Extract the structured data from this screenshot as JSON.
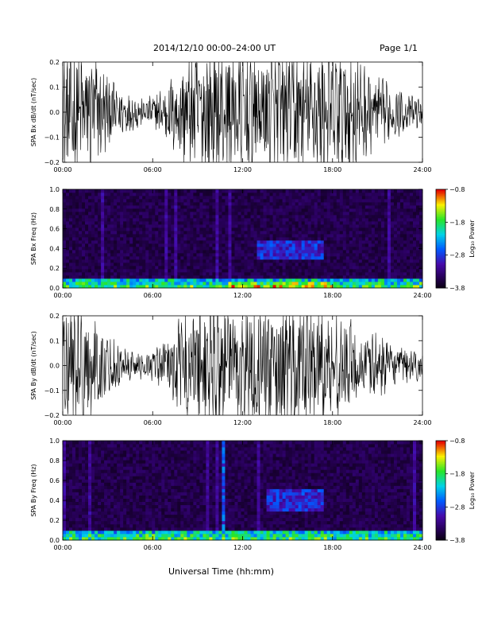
{
  "header": {
    "title": "2014/12/10   00:00–24:00 UT",
    "page": "Page 1/1"
  },
  "x_axis_label": "Universal Time (hh:mm)",
  "chart_data": [
    {
      "type": "line",
      "ylabel": "SPA Bx dB/dt (nT/sec)",
      "x_ticks": [
        "00:00",
        "06:00",
        "12:00",
        "18:00",
        "24:00"
      ],
      "y_ticks": [
        "0.2",
        "0.1",
        "0.0",
        "−0.1",
        "−0.2"
      ],
      "xlim": [
        0,
        24
      ],
      "ylim": [
        -0.2,
        0.2
      ],
      "x_unit": "hours UT",
      "series": [
        {
          "color": "#000000",
          "x": [
            0,
            0.5,
            1,
            1.5,
            2,
            2.5,
            3,
            3.5,
            4,
            4.5,
            5,
            5.5,
            6,
            6.5,
            7,
            7.5,
            8,
            8.5,
            9,
            9.5,
            10,
            10.5,
            11,
            11.5,
            12,
            12.5,
            13,
            13.5,
            14,
            14.5,
            15,
            15.5,
            16,
            16.5,
            17,
            17.5,
            18,
            18.5,
            19,
            19.5,
            20,
            20.5,
            21,
            21.5,
            22,
            22.5,
            23,
            23.5,
            24
          ],
          "amplitude": [
            0.2,
            0.2,
            0.2,
            0.2,
            0.19,
            0.15,
            0.12,
            0.09,
            0.07,
            0.06,
            0.05,
            0.04,
            0.05,
            0.07,
            0.1,
            0.14,
            0.17,
            0.18,
            0.2,
            0.2,
            0.2,
            0.2,
            0.2,
            0.2,
            0.2,
            0.2,
            0.17,
            0.2,
            0.2,
            0.2,
            0.2,
            0.2,
            0.2,
            0.2,
            0.2,
            0.2,
            0.2,
            0.2,
            0.2,
            0.2,
            0.16,
            0.13,
            0.11,
            0.09,
            0.08,
            0.07,
            0.06,
            0.05,
            0.04
          ]
        }
      ]
    },
    {
      "type": "heatmap",
      "ylabel": "SPA Bx Freq (Hz)",
      "x_ticks": [
        "00:00",
        "06:00",
        "12:00",
        "18:00",
        "24:00"
      ],
      "y_ticks": [
        "1.0",
        "0.8",
        "0.6",
        "0.4",
        "0.2",
        "0.0"
      ],
      "xlim": [
        0,
        24
      ],
      "ylim": [
        0,
        1
      ],
      "colorbar": {
        "label": "Log₁₀ Power",
        "ticks": [
          "−0.8",
          "−1.8",
          "−2.8",
          "−3.8"
        ],
        "range": [
          -3.8,
          -0.8
        ]
      },
      "features": [
        {
          "x": [
            0,
            24
          ],
          "y": [
            0,
            0.1
          ],
          "level": 0.55
        },
        {
          "x": [
            11,
            18.5
          ],
          "y": [
            0,
            0.05
          ],
          "level": 0.7
        },
        {
          "x": [
            13,
            17.5
          ],
          "y": [
            0.3,
            0.48
          ],
          "level": 0.35
        }
      ]
    },
    {
      "type": "line",
      "ylabel": "SPA By dB/dt (nT/sec)",
      "x_ticks": [
        "00:00",
        "06:00",
        "12:00",
        "18:00",
        "24:00"
      ],
      "y_ticks": [
        "0.2",
        "0.1",
        "0.0",
        "−0.1",
        "−0.2"
      ],
      "xlim": [
        0,
        24
      ],
      "ylim": [
        -0.2,
        0.2
      ],
      "x_unit": "hours UT",
      "series": [
        {
          "color": "#000000",
          "x": [
            0,
            0.5,
            1,
            1.5,
            2,
            2.5,
            3,
            3.5,
            4,
            4.5,
            5,
            5.5,
            6,
            6.5,
            7,
            7.5,
            8,
            8.5,
            9,
            9.5,
            10,
            10.5,
            11,
            11.5,
            12,
            12.5,
            13,
            13.5,
            14,
            14.5,
            15,
            15.5,
            16,
            16.5,
            17,
            17.5,
            18,
            18.5,
            19,
            19.5,
            20,
            20.5,
            21,
            21.5,
            22,
            22.5,
            23,
            23.5,
            24
          ],
          "amplitude": [
            0.2,
            0.2,
            0.2,
            0.19,
            0.16,
            0.13,
            0.1,
            0.08,
            0.06,
            0.05,
            0.04,
            0.04,
            0.05,
            0.06,
            0.08,
            0.12,
            0.15,
            0.17,
            0.2,
            0.2,
            0.2,
            0.2,
            0.2,
            0.2,
            0.2,
            0.2,
            0.2,
            0.2,
            0.2,
            0.2,
            0.2,
            0.2,
            0.2,
            0.2,
            0.2,
            0.2,
            0.18,
            0.17,
            0.15,
            0.12,
            0.1,
            0.1,
            0.09,
            0.08,
            0.07,
            0.06,
            0.06,
            0.05,
            0.04
          ]
        }
      ]
    },
    {
      "type": "heatmap",
      "ylabel": "SPA By Freq (Hz)",
      "x_ticks": [
        "00:00",
        "06:00",
        "12:00",
        "18:00",
        "24:00"
      ],
      "y_ticks": [
        "1.0",
        "0.8",
        "0.6",
        "0.4",
        "0.2",
        "0.0"
      ],
      "xlim": [
        0,
        24
      ],
      "ylim": [
        0,
        1
      ],
      "colorbar": {
        "label": "Log₁₀ Power",
        "ticks": [
          "−0.8",
          "−1.8",
          "−2.8",
          "−3.8"
        ],
        "range": [
          -3.8,
          -0.8
        ]
      },
      "features": [
        {
          "x": [
            0,
            24
          ],
          "y": [
            0,
            0.1
          ],
          "level": 0.55
        },
        {
          "x": [
            10.7,
            10.9
          ],
          "y": [
            0,
            1.0
          ],
          "level": 0.4
        },
        {
          "x": [
            13.5,
            17.5
          ],
          "y": [
            0.3,
            0.5
          ],
          "level": 0.35
        }
      ]
    }
  ]
}
